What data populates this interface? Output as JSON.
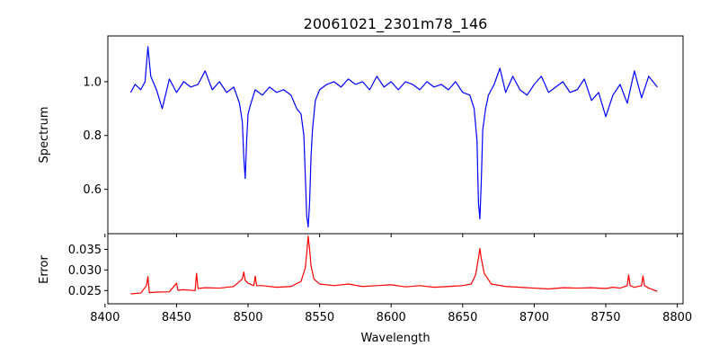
{
  "chart_data": [
    {
      "type": "line",
      "title": "20061021_2301m78_146",
      "ylabel": "Spectrum",
      "xlim": [
        8402,
        8804
      ],
      "ylim": [
        0.435,
        1.17
      ],
      "yticks": [
        0.6,
        0.8,
        1.0
      ],
      "ytick_labels": [
        "0.6",
        "0.8",
        "1.0"
      ],
      "series": [
        {
          "color": "#0000ff",
          "x": [
            8418,
            8421,
            8425,
            8428,
            8430,
            8432,
            8436,
            8440,
            8445,
            8450,
            8455,
            8460,
            8465,
            8470,
            8475,
            8480,
            8485,
            8490,
            8494,
            8496,
            8497,
            8498,
            8499,
            8500,
            8502,
            8505,
            8510,
            8515,
            8520,
            8525,
            8530,
            8534,
            8537,
            8539,
            8540,
            8541,
            8542,
            8543,
            8544,
            8545,
            8547,
            8550,
            8555,
            8560,
            8565,
            8570,
            8575,
            8580,
            8585,
            8590,
            8595,
            8600,
            8605,
            8610,
            8615,
            8620,
            8625,
            8630,
            8635,
            8640,
            8645,
            8650,
            8655,
            8658,
            8660,
            8661,
            8662,
            8663,
            8664,
            8666,
            8668,
            8672,
            8676,
            8680,
            8685,
            8690,
            8695,
            8700,
            8705,
            8710,
            8715,
            8720,
            8725,
            8730,
            8735,
            8740,
            8745,
            8750,
            8755,
            8760,
            8765,
            8770,
            8775,
            8780,
            8786
          ],
          "y": [
            0.96,
            0.99,
            0.97,
            1.0,
            1.13,
            1.02,
            0.97,
            0.9,
            1.01,
            0.96,
            1.0,
            0.98,
            0.99,
            1.04,
            0.97,
            1.0,
            0.96,
            0.98,
            0.92,
            0.85,
            0.72,
            0.64,
            0.78,
            0.88,
            0.92,
            0.97,
            0.95,
            0.98,
            0.96,
            0.97,
            0.95,
            0.9,
            0.88,
            0.8,
            0.65,
            0.5,
            0.46,
            0.55,
            0.72,
            0.82,
            0.93,
            0.97,
            0.99,
            1.0,
            0.98,
            1.01,
            0.99,
            1.0,
            0.97,
            1.02,
            0.98,
            1.0,
            0.97,
            1.0,
            0.99,
            0.97,
            1.0,
            0.98,
            0.99,
            0.97,
            1.0,
            0.96,
            0.95,
            0.9,
            0.78,
            0.55,
            0.49,
            0.63,
            0.82,
            0.9,
            0.95,
            0.99,
            1.05,
            0.96,
            1.02,
            0.97,
            0.95,
            0.99,
            1.02,
            0.96,
            0.98,
            1.0,
            0.96,
            0.97,
            1.01,
            0.93,
            0.96,
            0.87,
            0.95,
            0.99,
            0.92,
            1.04,
            0.94,
            1.02,
            0.98
          ]
        }
      ]
    },
    {
      "type": "line",
      "xlabel": "Wavelength",
      "ylabel": "Error",
      "xlim": [
        8402,
        8804
      ],
      "ylim": [
        0.0218,
        0.0388
      ],
      "xticks": [
        8400,
        8450,
        8500,
        8550,
        8600,
        8650,
        8700,
        8750,
        8800
      ],
      "xtick_labels": [
        "8400",
        "8450",
        "8500",
        "8550",
        "8600",
        "8650",
        "8700",
        "8750",
        "8800"
      ],
      "yticks": [
        0.025,
        0.03,
        0.035
      ],
      "ytick_labels": [
        "0.025",
        "0.030",
        "0.035"
      ],
      "series": [
        {
          "color": "#ff0000",
          "x": [
            8418,
            8425,
            8429,
            8430,
            8431,
            8435,
            8445,
            8450,
            8451,
            8455,
            8463,
            8464,
            8465,
            8470,
            8480,
            8490,
            8496,
            8497,
            8498,
            8500,
            8504,
            8505,
            8506,
            8510,
            8520,
            8530,
            8537,
            8540,
            8541,
            8542,
            8543,
            8544,
            8546,
            8550,
            8560,
            8570,
            8580,
            8590,
            8600,
            8610,
            8620,
            8630,
            8640,
            8650,
            8656,
            8659,
            8661,
            8662,
            8663,
            8665,
            8670,
            8680,
            8690,
            8700,
            8710,
            8720,
            8730,
            8740,
            8750,
            8755,
            8760,
            8765,
            8766,
            8767,
            8770,
            8775,
            8776,
            8777,
            8780,
            8786
          ],
          "y": [
            0.0242,
            0.0244,
            0.0262,
            0.0284,
            0.0245,
            0.0246,
            0.0247,
            0.0268,
            0.0251,
            0.0252,
            0.025,
            0.0292,
            0.0255,
            0.0257,
            0.0256,
            0.026,
            0.0278,
            0.0295,
            0.0275,
            0.0268,
            0.0262,
            0.0285,
            0.0262,
            0.0262,
            0.0258,
            0.026,
            0.0272,
            0.0305,
            0.034,
            0.0382,
            0.035,
            0.031,
            0.0278,
            0.0266,
            0.0262,
            0.0266,
            0.026,
            0.0262,
            0.0264,
            0.0259,
            0.0262,
            0.0258,
            0.026,
            0.0262,
            0.0266,
            0.0288,
            0.0328,
            0.0352,
            0.0328,
            0.0292,
            0.0266,
            0.026,
            0.0258,
            0.0256,
            0.0254,
            0.0257,
            0.0256,
            0.0257,
            0.0255,
            0.0258,
            0.0256,
            0.0262,
            0.0288,
            0.0262,
            0.0258,
            0.0262,
            0.0286,
            0.0262,
            0.0256,
            0.0248
          ]
        }
      ]
    }
  ]
}
